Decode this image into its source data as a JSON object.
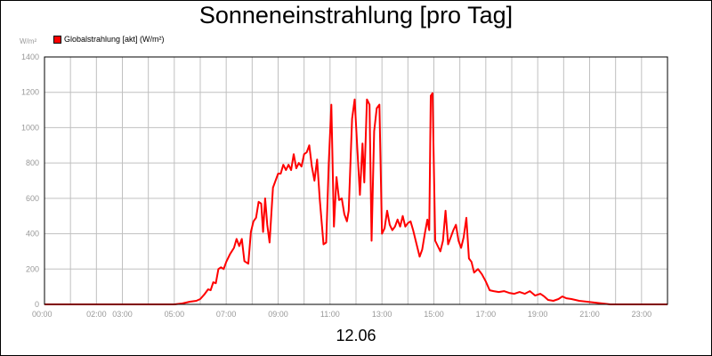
{
  "chart_data": {
    "type": "line",
    "title": "Sonneneinstrahlung [pro Tag]",
    "ylabel": "W/m²",
    "xlabel": "12.06",
    "ylim": [
      0,
      1400
    ],
    "xlim": [
      0,
      24
    ],
    "yticks": [
      0,
      200,
      400,
      600,
      800,
      1000,
      1200,
      1400
    ],
    "xticks": [
      {
        "x": 0,
        "label": "00:00"
      },
      {
        "x": 2,
        "label": "02:00"
      },
      {
        "x": 3,
        "label": "03:00"
      },
      {
        "x": 5,
        "label": "05:00"
      },
      {
        "x": 7,
        "label": "07:00"
      },
      {
        "x": 9,
        "label": "09:00"
      },
      {
        "x": 11,
        "label": "11:00"
      },
      {
        "x": 13,
        "label": "13:00"
      },
      {
        "x": 15,
        "label": "15:00"
      },
      {
        "x": 17,
        "label": "17:00"
      },
      {
        "x": 19,
        "label": "19:00"
      },
      {
        "x": 21,
        "label": "21:00"
      },
      {
        "x": 23,
        "label": "23:00"
      }
    ],
    "grid": true,
    "legend_position": "top-left",
    "series": [
      {
        "name": "Globalstrahlung [akt] (W/m²)",
        "color": "#ff0000",
        "points": [
          [
            0,
            0
          ],
          [
            5.0,
            0
          ],
          [
            5.3,
            5
          ],
          [
            5.6,
            15
          ],
          [
            5.85,
            20
          ],
          [
            6.0,
            30
          ],
          [
            6.15,
            55
          ],
          [
            6.3,
            85
          ],
          [
            6.4,
            80
          ],
          [
            6.5,
            125
          ],
          [
            6.6,
            120
          ],
          [
            6.7,
            200
          ],
          [
            6.8,
            210
          ],
          [
            6.9,
            200
          ],
          [
            7.0,
            240
          ],
          [
            7.15,
            285
          ],
          [
            7.3,
            320
          ],
          [
            7.4,
            370
          ],
          [
            7.5,
            330
          ],
          [
            7.6,
            370
          ],
          [
            7.7,
            245
          ],
          [
            7.85,
            230
          ],
          [
            7.95,
            410
          ],
          [
            8.05,
            470
          ],
          [
            8.15,
            490
          ],
          [
            8.25,
            580
          ],
          [
            8.35,
            570
          ],
          [
            8.42,
            410
          ],
          [
            8.5,
            600
          ],
          [
            8.58,
            450
          ],
          [
            8.67,
            350
          ],
          [
            8.8,
            660
          ],
          [
            8.9,
            700
          ],
          [
            9.0,
            740
          ],
          [
            9.1,
            740
          ],
          [
            9.2,
            790
          ],
          [
            9.3,
            760
          ],
          [
            9.4,
            790
          ],
          [
            9.5,
            760
          ],
          [
            9.6,
            850
          ],
          [
            9.7,
            770
          ],
          [
            9.8,
            800
          ],
          [
            9.9,
            780
          ],
          [
            10.0,
            850
          ],
          [
            10.1,
            860
          ],
          [
            10.2,
            900
          ],
          [
            10.3,
            780
          ],
          [
            10.4,
            700
          ],
          [
            10.5,
            820
          ],
          [
            10.6,
            600
          ],
          [
            10.75,
            340
          ],
          [
            10.85,
            350
          ],
          [
            10.95,
            800
          ],
          [
            11.05,
            1130
          ],
          [
            11.15,
            440
          ],
          [
            11.25,
            720
          ],
          [
            11.35,
            590
          ],
          [
            11.45,
            600
          ],
          [
            11.55,
            510
          ],
          [
            11.65,
            470
          ],
          [
            11.72,
            530
          ],
          [
            11.85,
            1050
          ],
          [
            11.95,
            1160
          ],
          [
            12.05,
            880
          ],
          [
            12.15,
            620
          ],
          [
            12.25,
            910
          ],
          [
            12.32,
            690
          ],
          [
            12.42,
            1160
          ],
          [
            12.52,
            1130
          ],
          [
            12.6,
            360
          ],
          [
            12.7,
            980
          ],
          [
            12.8,
            1110
          ],
          [
            12.9,
            1130
          ],
          [
            13.0,
            400
          ],
          [
            13.1,
            430
          ],
          [
            13.2,
            530
          ],
          [
            13.3,
            450
          ],
          [
            13.4,
            420
          ],
          [
            13.5,
            440
          ],
          [
            13.6,
            480
          ],
          [
            13.7,
            440
          ],
          [
            13.8,
            500
          ],
          [
            13.9,
            440
          ],
          [
            14.0,
            460
          ],
          [
            14.1,
            470
          ],
          [
            14.2,
            420
          ],
          [
            14.3,
            360
          ],
          [
            14.45,
            270
          ],
          [
            14.55,
            310
          ],
          [
            14.65,
            400
          ],
          [
            14.75,
            480
          ],
          [
            14.82,
            420
          ],
          [
            14.88,
            1180
          ],
          [
            14.95,
            1195
          ],
          [
            15.05,
            360
          ],
          [
            15.15,
            330
          ],
          [
            15.25,
            300
          ],
          [
            15.35,
            360
          ],
          [
            15.45,
            530
          ],
          [
            15.55,
            340
          ],
          [
            15.65,
            380
          ],
          [
            15.75,
            420
          ],
          [
            15.85,
            450
          ],
          [
            15.95,
            360
          ],
          [
            16.05,
            320
          ],
          [
            16.15,
            380
          ],
          [
            16.25,
            490
          ],
          [
            16.35,
            260
          ],
          [
            16.45,
            240
          ],
          [
            16.55,
            180
          ],
          [
            16.7,
            200
          ],
          [
            16.85,
            170
          ],
          [
            17.0,
            130
          ],
          [
            17.15,
            80
          ],
          [
            17.3,
            75
          ],
          [
            17.5,
            70
          ],
          [
            17.7,
            75
          ],
          [
            17.9,
            65
          ],
          [
            18.1,
            60
          ],
          [
            18.3,
            70
          ],
          [
            18.5,
            60
          ],
          [
            18.7,
            75
          ],
          [
            18.9,
            50
          ],
          [
            19.1,
            60
          ],
          [
            19.25,
            45
          ],
          [
            19.4,
            25
          ],
          [
            19.6,
            20
          ],
          [
            19.8,
            30
          ],
          [
            19.95,
            45
          ],
          [
            20.1,
            35
          ],
          [
            20.3,
            30
          ],
          [
            20.6,
            20
          ],
          [
            20.9,
            15
          ],
          [
            21.2,
            10
          ],
          [
            21.5,
            5
          ],
          [
            21.8,
            0
          ],
          [
            24.0,
            0
          ]
        ]
      }
    ]
  }
}
